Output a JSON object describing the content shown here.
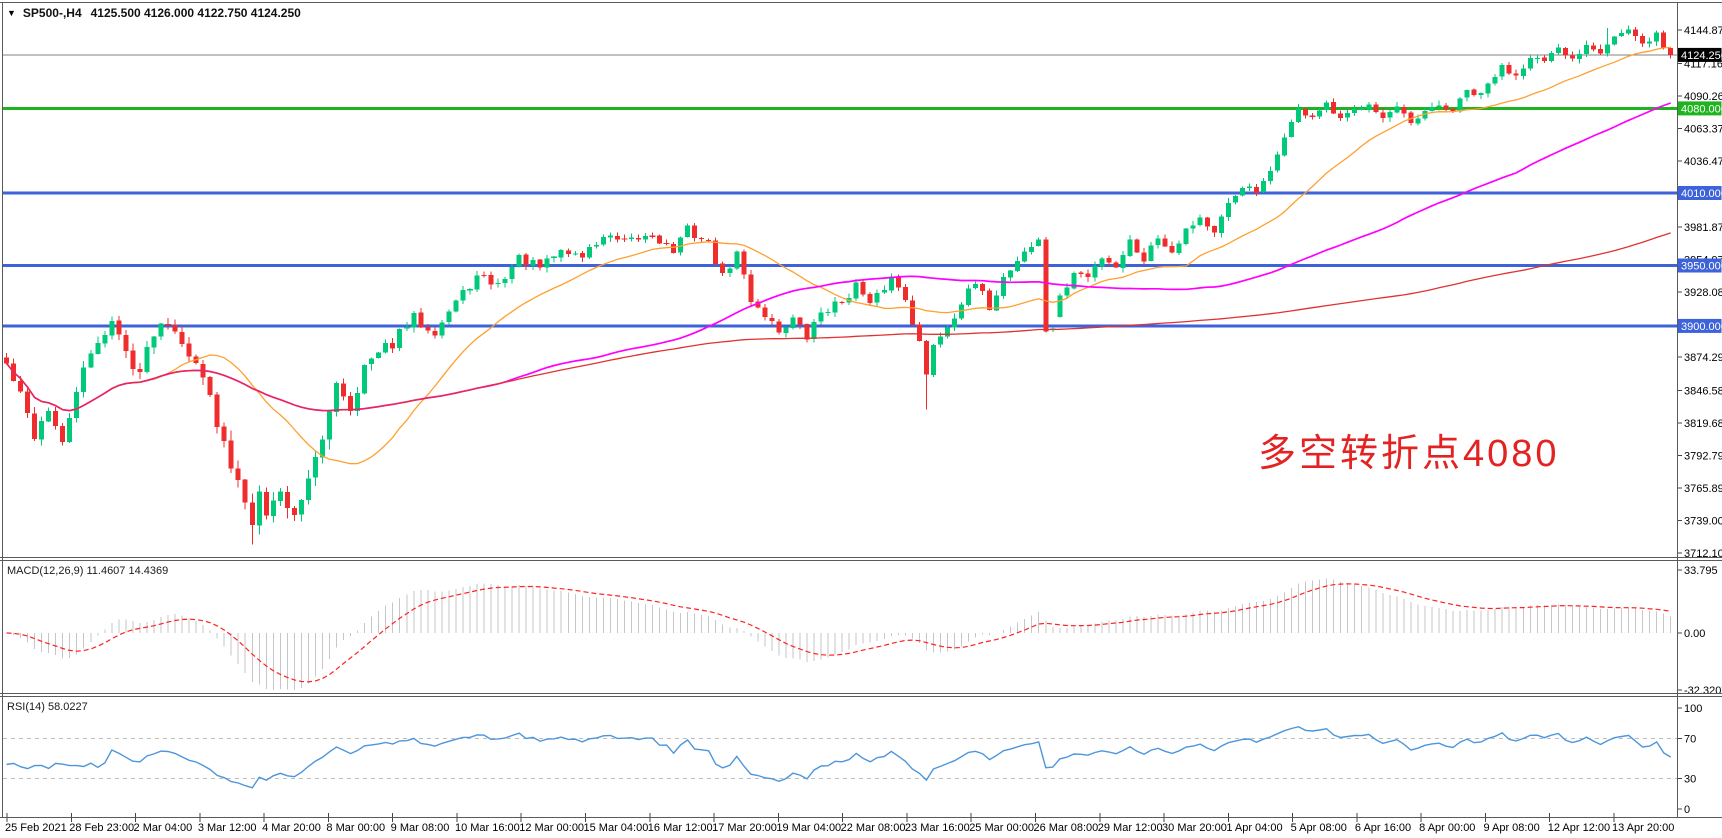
{
  "window": {
    "bg": "#ffffff",
    "border_color": "#5a5a5a"
  },
  "header": {
    "dropdown_icon": "▼",
    "symbol": "SP500-,H4",
    "ohlc": "4125.500 4126.000 4122.750 4124.250"
  },
  "annotation": {
    "text": "多空转折点4080",
    "color": "#E32222"
  },
  "indicators": {
    "macd": {
      "label": "MACD(12,26,9) 11.4607 14.4369",
      "values": [
        11.4607,
        14.4369
      ],
      "axis_ticks": [
        "33.795",
        "0.00",
        "-32.3207"
      ],
      "histogram_color": "#C6C6C6",
      "signal_color": "#FF2222",
      "params": {
        "fast": 12,
        "slow": 26,
        "signal": 9
      }
    },
    "rsi": {
      "label": "RSI(14) 58.0227",
      "value": 58.0227,
      "axis_ticks": [
        "100",
        "70",
        "30",
        "0"
      ],
      "levels": [
        70,
        30
      ],
      "line_color": "#4D96DB",
      "level_color": "#BDBDBD",
      "params": {
        "period": 14
      }
    }
  },
  "chart_data": {
    "type": "candlestick",
    "symbol": "SP500",
    "timeframe": "H4",
    "title": "SP500-,H4 4125.500 4126.000 4122.750 4124.250",
    "current_price": 4124.25,
    "ohlc_current": {
      "open": 4125.5,
      "high": 4126.0,
      "low": 4122.75,
      "close": 4124.25
    },
    "ylim": [
      3705,
      4163
    ],
    "grid": false,
    "legend": false,
    "up_color": "#00C97A",
    "down_color": "#EF2D2D",
    "price_axis_ticks": [
      "4144.870",
      "4117.160",
      "4090.265",
      "4063.370",
      "4036.475",
      "3981.870",
      "3954.975",
      "3928.080",
      "3874.290",
      "3846.580",
      "3819.685",
      "3792.790",
      "3765.895",
      "3739.000",
      "3712.105"
    ],
    "price_badges": [
      {
        "value": 4124.25,
        "label": "4124.250",
        "bg": "#000000",
        "fg": "#ffffff"
      },
      {
        "value": 4080.0,
        "label": "4080.000",
        "bg": "#1FB41F",
        "fg": "#ffffff"
      },
      {
        "value": 4010.0,
        "label": "4010.000",
        "bg": "#3E62D9",
        "fg": "#ffffff"
      },
      {
        "value": 3950.0,
        "label": "3950.000",
        "bg": "#3E62D9",
        "fg": "#ffffff"
      },
      {
        "value": 3900.0,
        "label": "3900.000",
        "bg": "#3E62D9",
        "fg": "#ffffff"
      }
    ],
    "current_price_line": {
      "value": 4124.25,
      "color": "#808080",
      "width": 1
    },
    "horizontal_lines": [
      {
        "value": 4080.0,
        "color": "#1FB41F",
        "width": 3,
        "name": "bull-bear-pivot-4080"
      },
      {
        "value": 4010.0,
        "color": "#3E62D9",
        "width": 3,
        "name": "support-4010"
      },
      {
        "value": 3950.0,
        "color": "#3E62D9",
        "width": 3,
        "name": "support-3950"
      },
      {
        "value": 3900.0,
        "color": "#3E62D9",
        "width": 3,
        "name": "support-3900"
      }
    ],
    "ma_lines": [
      {
        "name": "fast-ma",
        "window": 21,
        "color": "#FFA02E",
        "width": 1.3
      },
      {
        "name": "medium-ma",
        "window": 68,
        "color": "#FF00FF",
        "width": 1.7
      },
      {
        "name": "slow-ma",
        "window": 200,
        "color": "#E03232",
        "width": 1.3
      }
    ],
    "time_labels": [
      "25 Feb 2021",
      "28 Feb 23:00",
      "2 Mar 04:00",
      "3 Mar 12:00",
      "4 Mar 20:00",
      "8 Mar 00:00",
      "9 Mar 08:00",
      "10 Mar 16:00",
      "12 Mar 00:00",
      "15 Mar 04:00",
      "16 Mar 12:00",
      "17 Mar 20:00",
      "19 Mar 04:00",
      "22 Mar 08:00",
      "23 Mar 16:00",
      "25 Mar 00:00",
      "26 Mar 08:00",
      "29 Mar 12:00",
      "30 Mar 20:00",
      "1 Apr 04:00",
      "5 Apr 08:00",
      "6 Apr 16:00",
      "8 Apr 00:00",
      "9 Apr 08:00",
      "12 Apr 12:00",
      "13 Apr 20:00"
    ],
    "n_candles": 238,
    "close_path_anchors": [
      [
        0,
        3868
      ],
      [
        2,
        3842
      ],
      [
        4,
        3810
      ],
      [
        6,
        3832
      ],
      [
        8,
        3800
      ],
      [
        10,
        3848
      ],
      [
        13,
        3888
      ],
      [
        15,
        3904
      ],
      [
        17,
        3878
      ],
      [
        19,
        3862
      ],
      [
        21,
        3896
      ],
      [
        23,
        3906
      ],
      [
        25,
        3890
      ],
      [
        27,
        3866
      ],
      [
        29,
        3848
      ],
      [
        30,
        3820
      ],
      [
        32,
        3782
      ],
      [
        34,
        3756
      ],
      [
        35,
        3736
      ],
      [
        36,
        3768
      ],
      [
        37,
        3748
      ],
      [
        39,
        3762
      ],
      [
        41,
        3742
      ],
      [
        43,
        3776
      ],
      [
        45,
        3802
      ],
      [
        47,
        3856
      ],
      [
        49,
        3832
      ],
      [
        51,
        3866
      ],
      [
        55,
        3886
      ],
      [
        58,
        3906
      ],
      [
        61,
        3896
      ],
      [
        64,
        3920
      ],
      [
        67,
        3940
      ],
      [
        70,
        3934
      ],
      [
        73,
        3956
      ],
      [
        76,
        3948
      ],
      [
        79,
        3962
      ],
      [
        82,
        3958
      ],
      [
        85,
        3974
      ],
      [
        88,
        3968
      ],
      [
        92,
        3976
      ],
      [
        95,
        3962
      ],
      [
        97,
        3980
      ],
      [
        100,
        3968
      ],
      [
        102,
        3940
      ],
      [
        104,
        3960
      ],
      [
        106,
        3922
      ],
      [
        108,
        3910
      ],
      [
        110,
        3896
      ],
      [
        112,
        3906
      ],
      [
        114,
        3890
      ],
      [
        116,
        3912
      ],
      [
        119,
        3920
      ],
      [
        121,
        3934
      ],
      [
        123,
        3916
      ],
      [
        126,
        3940
      ],
      [
        128,
        3924
      ],
      [
        130,
        3886
      ],
      [
        131,
        3858
      ],
      [
        132,
        3886
      ],
      [
        134,
        3900
      ],
      [
        136,
        3920
      ],
      [
        138,
        3934
      ],
      [
        140,
        3916
      ],
      [
        142,
        3940
      ],
      [
        145,
        3962
      ],
      [
        147,
        3970
      ],
      [
        148,
        3896
      ],
      [
        150,
        3922
      ],
      [
        152,
        3944
      ],
      [
        154,
        3940
      ],
      [
        156,
        3958
      ],
      [
        158,
        3950
      ],
      [
        160,
        3970
      ],
      [
        162,
        3956
      ],
      [
        164,
        3974
      ],
      [
        166,
        3962
      ],
      [
        168,
        3980
      ],
      [
        170,
        3990
      ],
      [
        172,
        3976
      ],
      [
        174,
        4000
      ],
      [
        176,
        4016
      ],
      [
        178,
        4010
      ],
      [
        180,
        4026
      ],
      [
        182,
        4058
      ],
      [
        184,
        4078
      ],
      [
        186,
        4074
      ],
      [
        188,
        4082
      ],
      [
        190,
        4070
      ],
      [
        192,
        4078
      ],
      [
        194,
        4086
      ],
      [
        196,
        4072
      ],
      [
        198,
        4080
      ],
      [
        200,
        4066
      ],
      [
        202,
        4076
      ],
      [
        204,
        4082
      ],
      [
        206,
        4078
      ],
      [
        208,
        4094
      ],
      [
        210,
        4090
      ],
      [
        211,
        4100
      ],
      [
        213,
        4114
      ],
      [
        215,
        4108
      ],
      [
        217,
        4124
      ],
      [
        219,
        4118
      ],
      [
        221,
        4128
      ],
      [
        223,
        4120
      ],
      [
        225,
        4134
      ],
      [
        227,
        4128
      ],
      [
        229,
        4140
      ],
      [
        231,
        4144
      ],
      [
        233,
        4132
      ],
      [
        235,
        4142
      ],
      [
        236,
        4130
      ],
      [
        237,
        4124.25
      ]
    ],
    "wick_low_overrides": {
      "35": 3719,
      "38": 3740,
      "131": 3831
    },
    "wick_high_overrides": {
      "228": 4146.5,
      "231": 4148.5
    },
    "doji_indices": [
      149
    ]
  }
}
